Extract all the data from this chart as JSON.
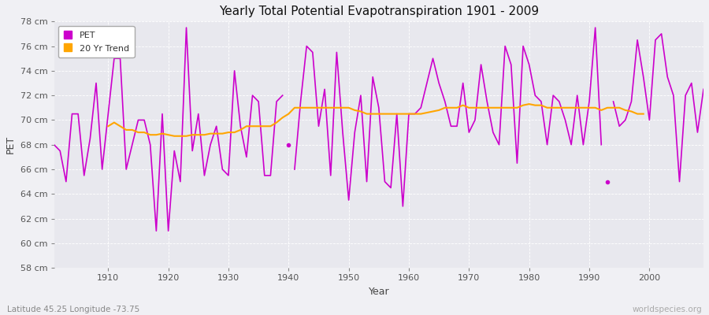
{
  "title": "Yearly Total Potential Evapotranspiration 1901 - 2009",
  "xlabel": "Year",
  "ylabel": "PET",
  "bottom_left_label": "Latitude 45.25 Longitude -73.75",
  "bottom_right_label": "worldspecies.org",
  "ylim": [
    58,
    78
  ],
  "ytick_step": 2,
  "xlim": [
    1901,
    2009
  ],
  "xticks": [
    1910,
    1920,
    1930,
    1940,
    1950,
    1960,
    1970,
    1980,
    1990,
    2000
  ],
  "pet_color": "#cc00cc",
  "trend_color": "#ffa500",
  "plot_bg_color": "#e8e8ee",
  "fig_bg_color": "#f0f0f4",
  "grid_color": "#ffffff",
  "pet_segments": [
    [
      1901,
      1902,
      1903,
      1904,
      1905,
      1906,
      1907,
      1908,
      1909,
      1910,
      1911,
      1912,
      1913,
      1914,
      1915,
      1916,
      1917,
      1918,
      1919,
      1920,
      1921,
      1922,
      1923,
      1924,
      1925,
      1926,
      1927,
      1928,
      1929,
      1930,
      1931,
      1932,
      1933,
      1934,
      1935,
      1936,
      1937,
      1938,
      1939
    ],
    [
      1941,
      1942,
      1943,
      1944,
      1945,
      1946,
      1947,
      1948,
      1949,
      1950,
      1951,
      1952,
      1953,
      1954,
      1955,
      1956,
      1957,
      1958,
      1959,
      1960,
      1961,
      1962,
      1963,
      1964,
      1965,
      1966,
      1967,
      1968,
      1969,
      1970,
      1971,
      1972,
      1973,
      1974,
      1975,
      1976,
      1977,
      1978,
      1979,
      1980,
      1981,
      1982,
      1983,
      1984,
      1985,
      1986,
      1987,
      1988,
      1989,
      1990,
      1991,
      1992
    ],
    [
      1994,
      1995,
      1996,
      1997,
      1998,
      1999,
      2000,
      2001,
      2002,
      2003,
      2004,
      2005,
      2006,
      2007,
      2008,
      2009
    ]
  ],
  "pet_segment_values": [
    [
      68.0,
      67.5,
      65.0,
      70.5,
      70.5,
      65.5,
      68.5,
      73.0,
      66.0,
      70.5,
      75.0,
      75.0,
      66.0,
      68.0,
      70.0,
      70.0,
      68.0,
      61.0,
      70.5,
      61.0,
      67.5,
      65.0,
      77.5,
      67.5,
      70.5,
      65.5,
      68.0,
      69.5,
      66.0,
      65.5,
      74.0,
      69.5,
      67.0,
      72.0,
      71.5,
      65.5,
      65.5,
      71.5,
      72.0
    ],
    [
      66.0,
      71.5,
      76.0,
      75.5,
      69.5,
      72.5,
      65.5,
      75.5,
      69.0,
      63.5,
      69.0,
      72.0,
      65.0,
      73.5,
      71.0,
      65.0,
      64.5,
      70.5,
      63.0,
      70.5,
      70.5,
      71.0,
      73.0,
      75.0,
      73.0,
      71.5,
      69.5,
      69.5,
      73.0,
      69.0,
      70.0,
      74.5,
      71.5,
      69.0,
      68.0,
      76.0,
      74.5,
      66.5,
      76.0,
      74.5,
      72.0,
      71.5,
      68.0,
      72.0,
      71.5,
      70.0,
      68.0,
      72.0,
      68.0,
      71.5,
      77.5,
      68.0
    ],
    [
      71.5,
      69.5,
      70.0,
      71.5,
      76.5,
      73.5,
      70.0,
      76.5,
      77.0,
      73.5,
      72.0,
      65.0,
      72.0,
      73.0,
      69.0,
      72.5
    ]
  ],
  "isolated_points": [
    [
      1940,
      68.0
    ],
    [
      1993,
      65.0
    ]
  ],
  "trend_years": [
    1910,
    1911,
    1912,
    1913,
    1914,
    1915,
    1916,
    1917,
    1918,
    1919,
    1920,
    1921,
    1922,
    1923,
    1924,
    1925,
    1926,
    1927,
    1928,
    1929,
    1930,
    1931,
    1932,
    1933,
    1934,
    1935,
    1936,
    1937,
    1938,
    1939,
    1940,
    1941,
    1942,
    1943,
    1944,
    1945,
    1946,
    1947,
    1948,
    1949,
    1950,
    1951,
    1952,
    1953,
    1954,
    1955,
    1956,
    1957,
    1958,
    1959,
    1960,
    1961,
    1962,
    1963,
    1964,
    1965,
    1966,
    1967,
    1968,
    1969,
    1970,
    1971,
    1972,
    1973,
    1974,
    1975,
    1976,
    1977,
    1978,
    1979,
    1980,
    1981,
    1982,
    1983,
    1984,
    1985,
    1986,
    1987,
    1988,
    1989,
    1990,
    1991,
    1992,
    1993,
    1994,
    1995,
    1996,
    1997,
    1998,
    1999
  ],
  "trend_values": [
    69.5,
    69.8,
    69.5,
    69.2,
    69.2,
    69.0,
    69.0,
    68.8,
    68.8,
    68.9,
    68.8,
    68.7,
    68.7,
    68.7,
    68.8,
    68.8,
    68.8,
    68.9,
    68.9,
    68.9,
    69.0,
    69.0,
    69.2,
    69.5,
    69.5,
    69.5,
    69.5,
    69.5,
    69.8,
    70.2,
    70.5,
    71.0,
    71.0,
    71.0,
    71.0,
    71.0,
    71.0,
    71.0,
    71.0,
    71.0,
    71.0,
    70.8,
    70.7,
    70.5,
    70.5,
    70.5,
    70.5,
    70.5,
    70.5,
    70.5,
    70.5,
    70.5,
    70.5,
    70.6,
    70.7,
    70.8,
    71.0,
    71.0,
    71.0,
    71.2,
    71.0,
    71.0,
    71.0,
    71.0,
    71.0,
    71.0,
    71.0,
    71.0,
    71.0,
    71.2,
    71.3,
    71.2,
    71.2,
    71.0,
    71.0,
    71.0,
    71.0,
    71.0,
    71.0,
    71.0,
    71.0,
    71.0,
    70.8,
    71.0,
    71.0,
    71.0,
    70.8,
    70.7,
    70.5,
    70.5
  ]
}
